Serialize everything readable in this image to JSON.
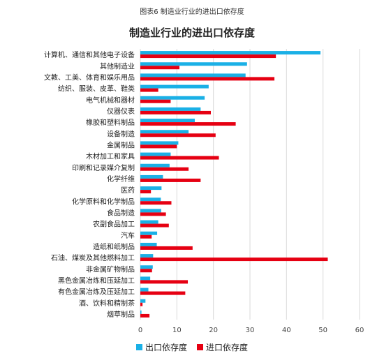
{
  "caption": "图表6 制造业行业的进出口依存度",
  "colors": {
    "export": "#1ab0e6",
    "import": "#e60012",
    "grid": "#d9d9d9"
  },
  "chart_data": {
    "type": "bar",
    "orientation": "horizontal",
    "title": "制造业行业的进出口依存度",
    "xlabel": "",
    "ylabel": "",
    "xlim": [
      0,
      60
    ],
    "xticks": [
      "0",
      "10",
      "20",
      "30",
      "40",
      "50",
      "60"
    ],
    "grid": true,
    "legend_position": "bottom",
    "categories": [
      "计算机、通信和其他电子设备",
      "其他制造业",
      "文教、工美、体育和娱乐用品",
      "纺织、服装、皮革、鞋类",
      "电气机械和器材",
      "仪器仪表",
      "橡胶和塑料制品",
      "设备制造",
      "金属制品",
      "木材加工和家具",
      "印刷和记录媒介复制",
      "化学纤维",
      "医药",
      "化学原料和化学制品",
      "食品制造",
      "农副食品加工",
      "汽车",
      "造纸和纸制品",
      "石油、煤炭及其他燃料加工",
      "非金属矿物制品",
      "黑色金属冶炼和压延加工",
      "有色金属冶炼及压延加工",
      "酒、饮料和精制茶",
      "烟草制品"
    ],
    "series": [
      {
        "name": "出口依存度",
        "values": [
          49.3,
          29.2,
          28.8,
          18.7,
          17.6,
          16.5,
          14.9,
          13.2,
          10.4,
          8.3,
          8.0,
          6.2,
          5.8,
          5.6,
          5.7,
          4.9,
          4.6,
          4.5,
          3.5,
          3.4,
          2.7,
          2.2,
          1.4,
          0.3
        ]
      },
      {
        "name": "进口依存度",
        "values": [
          37.1,
          10.7,
          36.7,
          4.9,
          8.3,
          19.3,
          26.1,
          20.6,
          10.0,
          21.5,
          13.2,
          16.5,
          2.9,
          8.5,
          7.0,
          7.8,
          3.1,
          14.3,
          51.3,
          3.2,
          13.0,
          12.3,
          0.6,
          2.5
        ]
      }
    ]
  }
}
